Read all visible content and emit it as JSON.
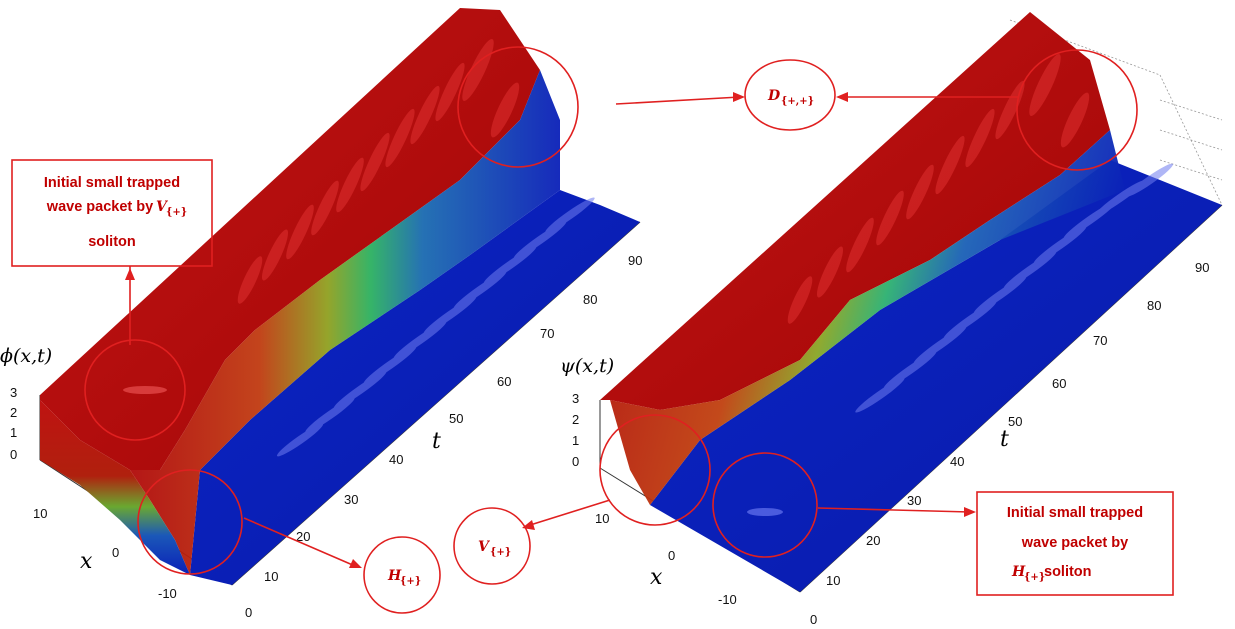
{
  "panels": {
    "left": {
      "z_label": "ϕ(x,t)",
      "x_label": "x",
      "t_label": "t",
      "z_ticks": [
        "3",
        "2",
        "1",
        "0"
      ],
      "x_ticks": [
        "10",
        "0",
        "-10"
      ],
      "t_ticks": [
        "0",
        "10",
        "20",
        "30",
        "40",
        "50",
        "60",
        "70",
        "80",
        "90"
      ]
    },
    "right": {
      "z_label": "ψ(x,t)",
      "x_label": "x",
      "t_label": "t",
      "z_ticks": [
        "3",
        "2",
        "1",
        "0"
      ],
      "x_ticks": [
        "10",
        "0",
        "-10"
      ],
      "t_ticks": [
        "0",
        "10",
        "20",
        "30",
        "40",
        "50",
        "60",
        "70",
        "80",
        "90"
      ]
    }
  },
  "annotations": {
    "left_box": {
      "line1": "Initial small trapped",
      "line2": "wave packet by",
      "v": "V",
      "v_sub": "{+}",
      "line3": "soliton"
    },
    "right_box": {
      "line1": "Initial small trapped",
      "line2": "wave packet by",
      "h": "H",
      "h_sub": "{+}",
      "line3": " soliton"
    },
    "h_label": {
      "main": "H",
      "sub": "{+}"
    },
    "v_label": {
      "main": "V",
      "sub": "{+}"
    },
    "d_label": {
      "main": "D",
      "sub": "{+,+}"
    }
  },
  "colors": {
    "annotation": "#e02020",
    "high_state": "#b40808",
    "low_state": "#0a1fb8",
    "transition": "#3cb83c"
  }
}
